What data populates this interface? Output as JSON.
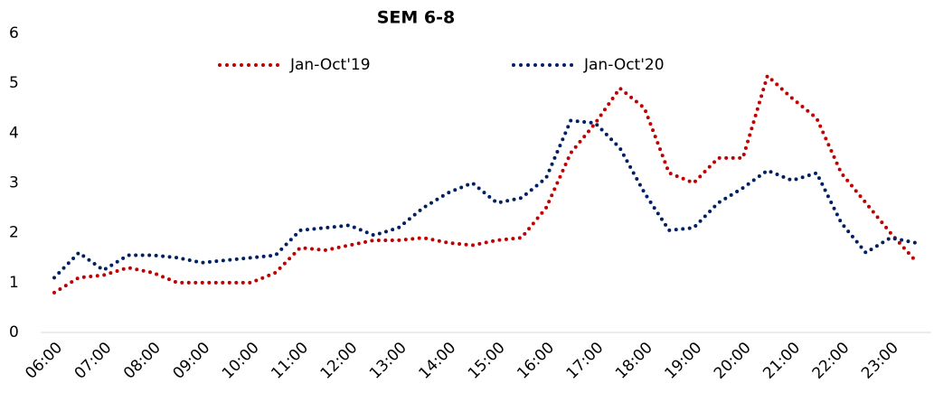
{
  "chart_data": {
    "type": "line",
    "title": "SEM 6-8",
    "categories": [
      "06:00",
      null,
      "07:00",
      null,
      "08:00",
      null,
      "09:00",
      null,
      "10:00",
      null,
      "11:00",
      null,
      "12:00",
      null,
      "13:00",
      null,
      "14:00",
      null,
      "15:00",
      null,
      "16:00",
      null,
      "17:00",
      null,
      "18:00",
      null,
      "19:00",
      null,
      "20:00",
      null,
      "21:00",
      null,
      "22:00",
      null,
      "23:00",
      null
    ],
    "series": [
      {
        "name": "Jan-Oct'19",
        "color": "#c00000",
        "values": [
          0.8,
          1.1,
          1.15,
          1.3,
          1.2,
          1.0,
          1.0,
          1.0,
          1.0,
          1.2,
          1.7,
          1.65,
          1.75,
          1.85,
          1.85,
          1.9,
          1.8,
          1.75,
          1.85,
          1.9,
          2.5,
          3.6,
          4.2,
          4.9,
          4.5,
          3.2,
          3.0,
          3.5,
          3.5,
          5.15,
          4.7,
          4.3,
          3.2,
          2.6,
          2.0,
          1.45
        ]
      },
      {
        "name": "Jan-Oct'20",
        "color": "#002060",
        "values": [
          1.1,
          1.6,
          1.25,
          1.55,
          1.55,
          1.5,
          1.4,
          1.45,
          1.5,
          1.55,
          2.05,
          2.1,
          2.15,
          1.95,
          2.1,
          2.5,
          2.8,
          3.0,
          2.6,
          2.7,
          3.1,
          4.25,
          4.2,
          3.7,
          2.8,
          2.05,
          2.1,
          2.6,
          2.9,
          3.25,
          3.05,
          3.2,
          2.2,
          1.6,
          1.9,
          1.8
        ]
      }
    ],
    "ylim": [
      0,
      6
    ],
    "yticks": [
      0,
      1,
      2,
      3,
      4,
      5,
      6
    ],
    "grid": false,
    "legend": "top"
  }
}
